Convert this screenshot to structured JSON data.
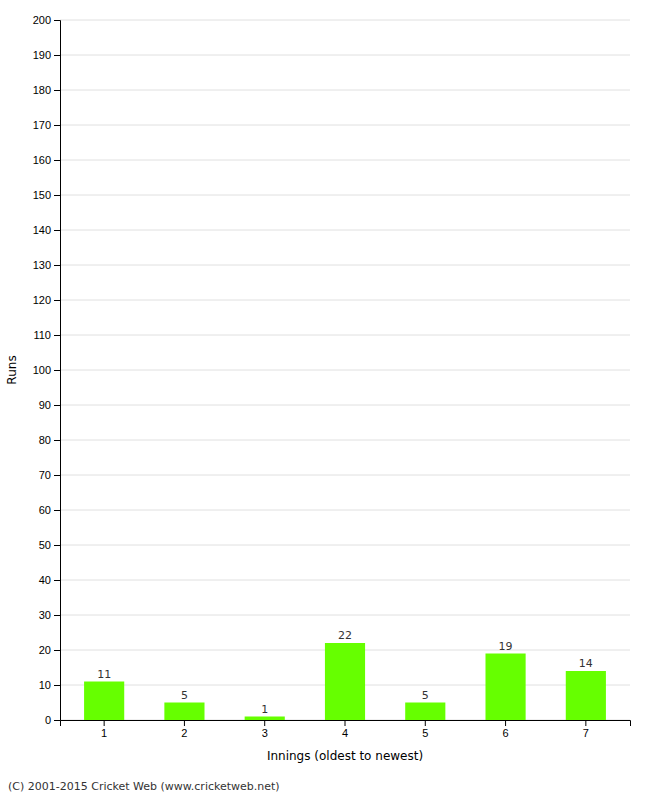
{
  "chart_data": {
    "type": "bar",
    "categories": [
      "1",
      "2",
      "3",
      "4",
      "5",
      "6",
      "7"
    ],
    "values": [
      11,
      5,
      1,
      22,
      5,
      19,
      14
    ],
    "color": "#66ff00",
    "xlabel": "Innings (oldest to newest)",
    "ylabel": "Runs",
    "ylim": [
      0,
      200
    ],
    "yticks": [
      0,
      10,
      20,
      30,
      40,
      50,
      60,
      70,
      80,
      90,
      100,
      110,
      120,
      130,
      140,
      150,
      160,
      170,
      180,
      190,
      200
    ],
    "grid": true,
    "data_labels": true,
    "footer": "(C) 2001-2015 Cricket Web (www.cricketweb.net)"
  }
}
